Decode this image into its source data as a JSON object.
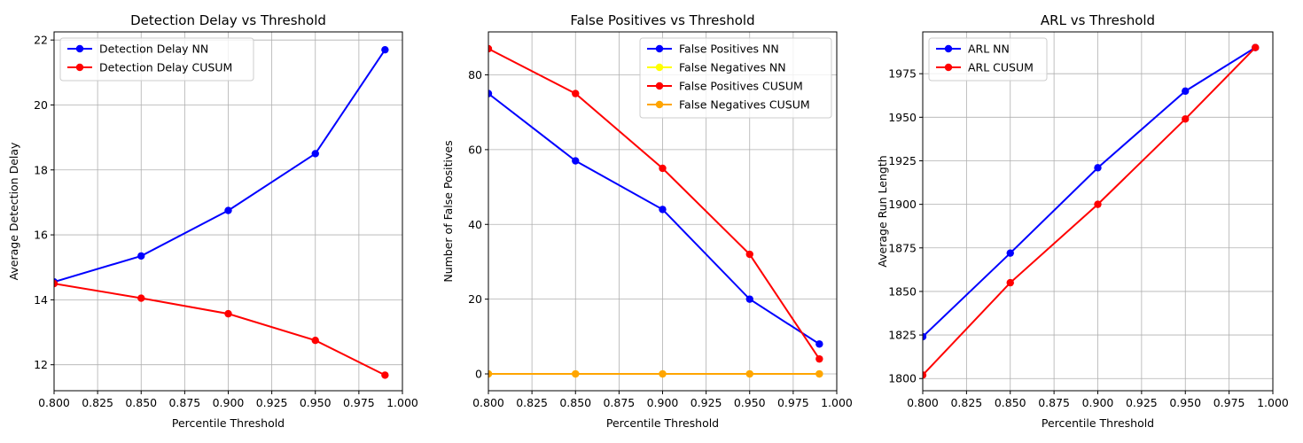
{
  "chart_data": [
    {
      "type": "line",
      "title": "Detection Delay vs Threshold",
      "xlabel": "Percentile Threshold",
      "ylabel": "Average Detection Delay",
      "xlim": [
        0.8,
        1.0
      ],
      "ylim": [
        11.2,
        22.25
      ],
      "xticks": [
        "0.800",
        "0.825",
        "0.850",
        "0.875",
        "0.900",
        "0.925",
        "0.950",
        "0.975",
        "1.000"
      ],
      "xtick_values": [
        0.8,
        0.825,
        0.85,
        0.875,
        0.9,
        0.925,
        0.95,
        0.975,
        1.0
      ],
      "yticks": [
        "12",
        "14",
        "16",
        "18",
        "20",
        "22"
      ],
      "ytick_values": [
        12,
        14,
        16,
        18,
        20,
        22
      ],
      "grid": true,
      "legend": "upper-left",
      "x": [
        0.8,
        0.85,
        0.9,
        0.95,
        0.99
      ],
      "series": [
        {
          "name": "Detection Delay NN",
          "color": "#0000ff",
          "values": [
            14.55,
            15.35,
            16.75,
            18.5,
            21.7
          ]
        },
        {
          "name": "Detection Delay CUSUM",
          "color": "#ff0000",
          "values": [
            14.5,
            14.05,
            13.57,
            12.75,
            11.68
          ]
        }
      ]
    },
    {
      "type": "line",
      "title": "False Positives vs Threshold",
      "xlabel": "Percentile Threshold",
      "ylabel": "Number of False Positives",
      "xlim": [
        0.8,
        1.0
      ],
      "ylim": [
        -4.5,
        91.5
      ],
      "xticks": [
        "0.800",
        "0.825",
        "0.850",
        "0.875",
        "0.900",
        "0.925",
        "0.950",
        "0.975",
        "1.000"
      ],
      "xtick_values": [
        0.8,
        0.825,
        0.85,
        0.875,
        0.9,
        0.925,
        0.95,
        0.975,
        1.0
      ],
      "yticks": [
        "0",
        "20",
        "40",
        "60",
        "80"
      ],
      "ytick_values": [
        0,
        20,
        40,
        60,
        80
      ],
      "grid": true,
      "legend": "upper-right",
      "x": [
        0.8,
        0.85,
        0.9,
        0.95,
        0.99
      ],
      "series": [
        {
          "name": "False Positives NN",
          "color": "#0000ff",
          "values": [
            75,
            57,
            44,
            20,
            8
          ]
        },
        {
          "name": "False Negatives NN",
          "color": "#ffff00",
          "values": [
            0,
            0,
            0,
            0,
            0
          ]
        },
        {
          "name": "False Positives CUSUM",
          "color": "#ff0000",
          "values": [
            87,
            75,
            55,
            32,
            4
          ]
        },
        {
          "name": "False Negatives CUSUM",
          "color": "#ffa500",
          "values": [
            0,
            0,
            0,
            0,
            0
          ]
        }
      ]
    },
    {
      "type": "line",
      "title": "ARL vs Threshold",
      "xlabel": "Percentile Threshold",
      "ylabel": "Average Run Length",
      "xlim": [
        0.8,
        1.0
      ],
      "ylim": [
        1793,
        1999
      ],
      "xticks": [
        "0.800",
        "0.825",
        "0.850",
        "0.875",
        "0.900",
        "0.925",
        "0.950",
        "0.975",
        "1.000"
      ],
      "xtick_values": [
        0.8,
        0.825,
        0.85,
        0.875,
        0.9,
        0.925,
        0.95,
        0.975,
        1.0
      ],
      "yticks": [
        "1800",
        "1825",
        "1850",
        "1875",
        "1900",
        "1925",
        "1950",
        "1975"
      ],
      "ytick_values": [
        1800,
        1825,
        1850,
        1875,
        1900,
        1925,
        1950,
        1975
      ],
      "grid": true,
      "legend": "upper-left",
      "x": [
        0.8,
        0.85,
        0.9,
        0.95,
        0.99
      ],
      "series": [
        {
          "name": "ARL NN",
          "color": "#0000ff",
          "values": [
            1824,
            1872,
            1921,
            1965,
            1990
          ]
        },
        {
          "name": "ARL CUSUM",
          "color": "#ff0000",
          "values": [
            1802,
            1855,
            1900,
            1949,
            1990
          ]
        }
      ]
    }
  ]
}
